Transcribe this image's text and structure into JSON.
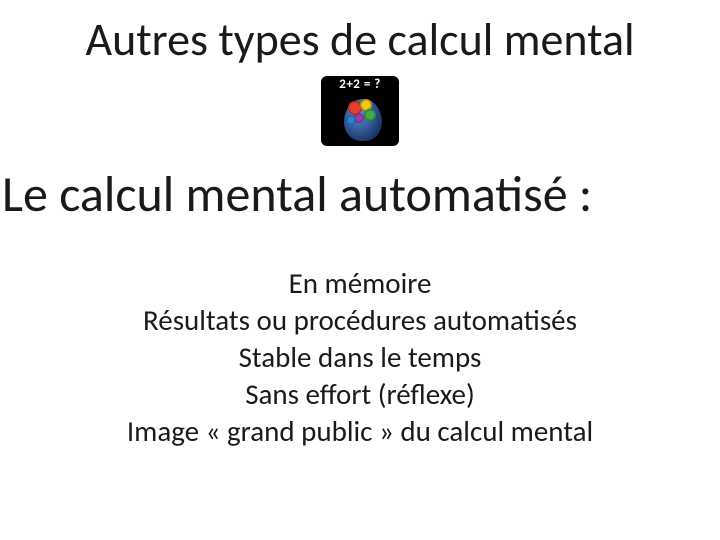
{
  "title": "Autres types de calcul mental",
  "icon": {
    "equation": "2+2 = ?",
    "bg_color": "#000000",
    "text_color": "#ffffff",
    "gear_colors": [
      "#e63e2e",
      "#f5c518",
      "#3fae49",
      "#9b3fae",
      "#2e7fd6"
    ]
  },
  "subtitle": "Le calcul mental automatisé :",
  "body_lines": {
    "l0": "En mémoire",
    "l1": "Résultats ou procédures automatisés",
    "l2": "Stable dans le temps",
    "l3": "Sans effort (réflexe)",
    "l4": "Image « grand public » du calcul mental"
  },
  "style": {
    "background": "#ffffff",
    "title_fontsize": 46,
    "subtitle_fontsize": 50,
    "body_fontsize": 29,
    "text_color": "#1a1a1a",
    "font_family": "Calibri"
  }
}
